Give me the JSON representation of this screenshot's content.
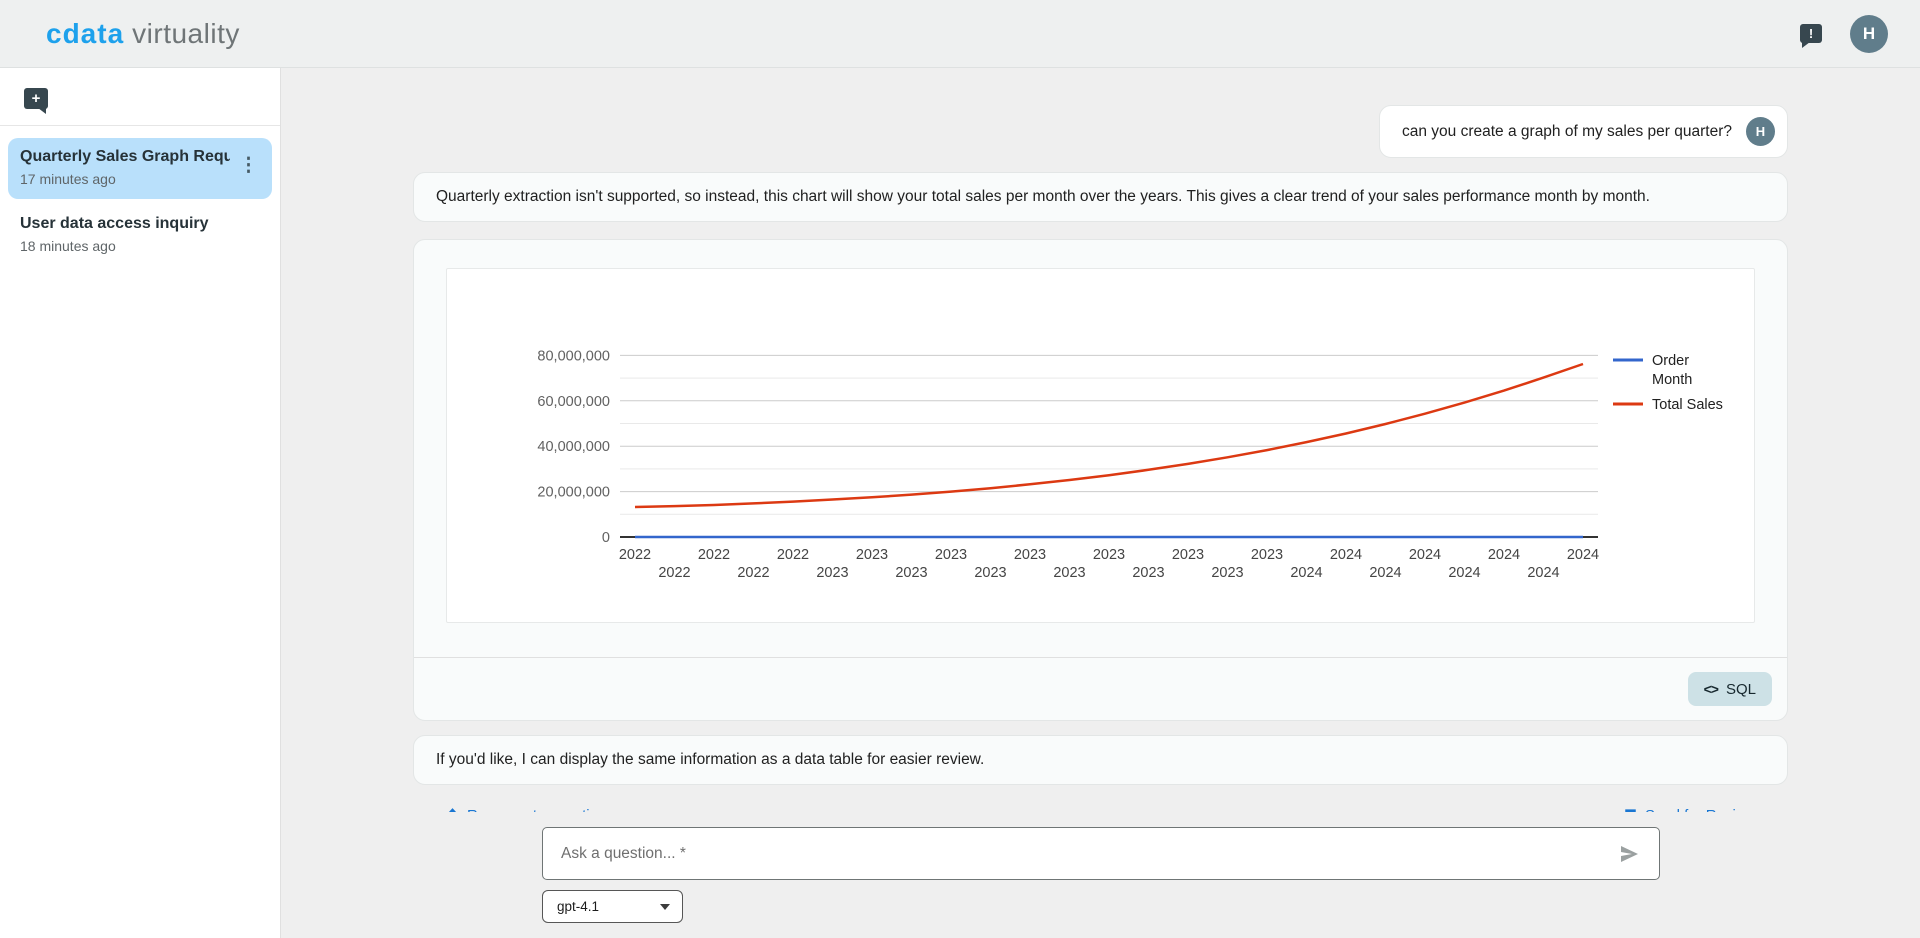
{
  "header": {
    "brand_primary": "cdata",
    "brand_secondary": "virtuality",
    "feedback_icon_glyph": "!",
    "avatar_initial": "H"
  },
  "sidebar": {
    "new_chat_glyph": "+",
    "conversations": [
      {
        "title": "Quarterly Sales Graph Requ...",
        "timestamp": "17 minutes ago",
        "selected": true,
        "menu_glyph": "⋮"
      },
      {
        "title": "User data access inquiry",
        "timestamp": "18 minutes ago",
        "selected": false
      }
    ]
  },
  "chat": {
    "user_message": "can you create a graph of my sales per quarter?",
    "user_avatar_initial": "H",
    "assistant_message_1": "Quarterly extraction isn't supported, so instead, this chart will show your total sales per month over the years. This gives a clear trend of your sales performance month by month.",
    "assistant_message_2": "If you'd like, I can display the same information as a data table for easier review.",
    "sql_button_label": "SQL",
    "sql_button_glyph": "<>",
    "regenerate_link_label": "Regenerate question",
    "review_link_label": "Send for Review"
  },
  "composer": {
    "input_placeholder": "Ask a question... *",
    "model_selector_value": "gpt-4.1"
  },
  "colors": {
    "brand_blue": "#1da1ec",
    "selected_conversation": "#b9e0fb",
    "avatar_background": "#607d8b",
    "link_blue": "#1976d2",
    "sql_button_background": "#cde1e6",
    "series_order_month": "#3366CC",
    "series_total_sales": "#DC3912"
  },
  "chart_data": {
    "type": "line",
    "x": [
      "2022-08",
      "2022-09",
      "2022-10",
      "2022-11",
      "2022-12",
      "2023-01",
      "2023-02",
      "2023-03",
      "2023-04",
      "2023-05",
      "2023-06",
      "2023-07",
      "2023-08",
      "2023-09",
      "2023-10",
      "2023-11",
      "2023-12",
      "2024-01",
      "2024-02",
      "2024-03",
      "2024-04",
      "2024-05",
      "2024-06",
      "2024-07",
      "2024-08"
    ],
    "x_tick_labels": [
      "2022",
      "2022",
      "2022",
      "2022",
      "2022",
      "2023",
      "2023",
      "2023",
      "2023",
      "2023",
      "2023",
      "2023",
      "2023",
      "2023",
      "2023",
      "2023",
      "2023",
      "2024",
      "2024",
      "2024",
      "2024",
      "2024",
      "2024",
      "2024",
      "2024"
    ],
    "series": [
      {
        "name": "Order Month",
        "legend_lines": [
          "Order",
          "Month"
        ],
        "color": "#3366CC",
        "values": [
          8,
          9,
          10,
          11,
          12,
          1,
          2,
          3,
          4,
          5,
          6,
          7,
          8,
          9,
          10,
          11,
          12,
          1,
          2,
          3,
          4,
          5,
          6,
          7,
          8
        ]
      },
      {
        "name": "Total Sales",
        "legend_lines": [
          "Total Sales"
        ],
        "color": "#DC3912",
        "values": [
          13200000,
          13600000,
          14100000,
          14800000,
          15600000,
          16500000,
          17500000,
          18700000,
          20000000,
          21500000,
          23200000,
          25100000,
          27200000,
          29600000,
          32200000,
          35100000,
          38300000,
          41800000,
          45600000,
          49800000,
          54300000,
          59200000,
          64500000,
          70200000,
          76200000
        ]
      }
    ],
    "ylim": [
      0,
      85000000
    ],
    "y_ticks": [
      0,
      20000000,
      40000000,
      60000000,
      80000000
    ],
    "y_tick_labels": [
      "0",
      "20,000,000",
      "40,000,000",
      "60,000,000",
      "80,000,000"
    ],
    "minor_grid_step": 10000000,
    "grid": true,
    "legend_position": "right",
    "title": "",
    "xlabel": "",
    "ylabel": ""
  }
}
